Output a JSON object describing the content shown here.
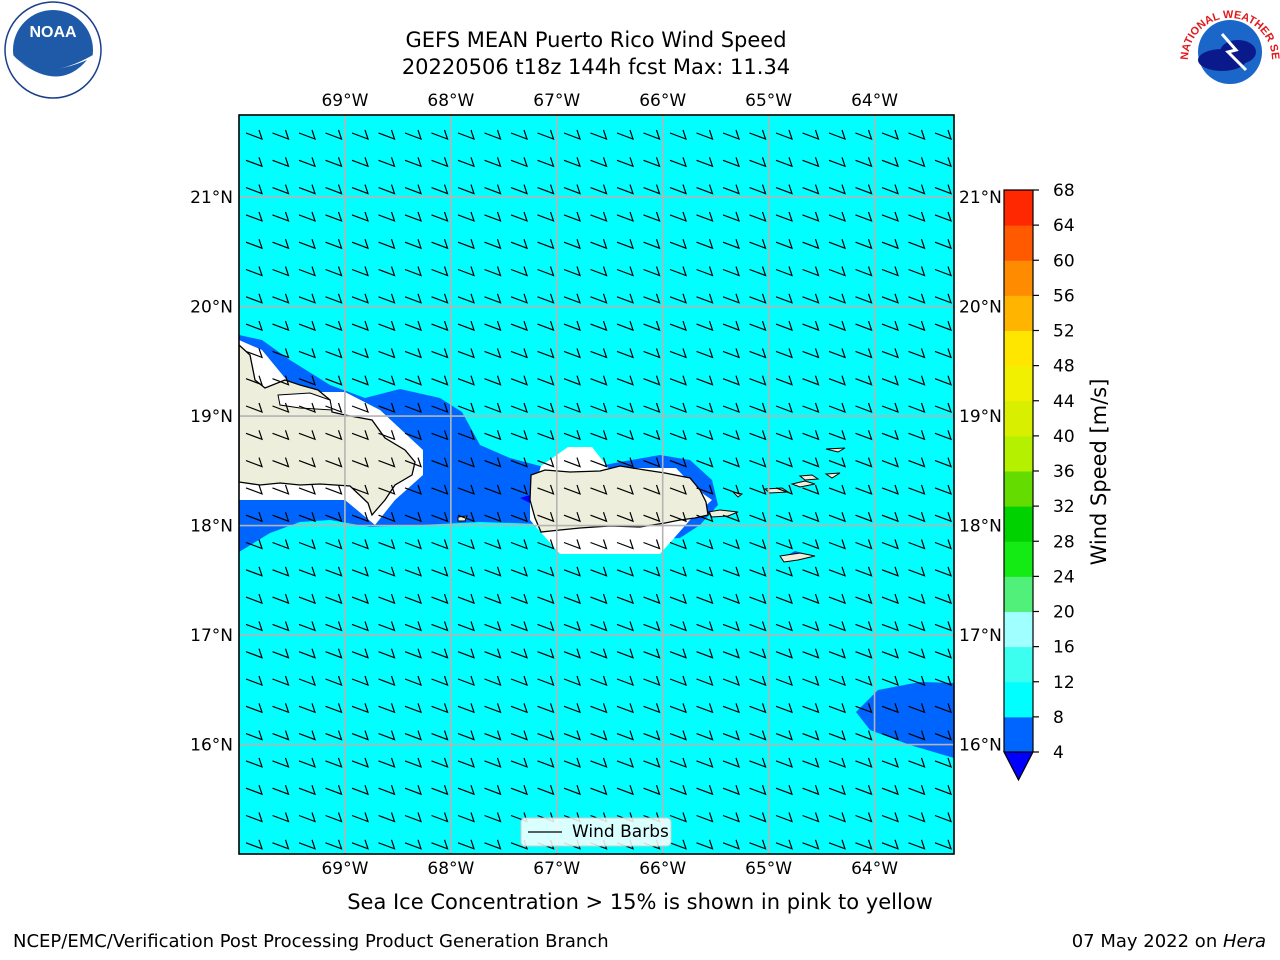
{
  "title": {
    "line1": "GEFS MEAN Puerto Rico Wind Speed",
    "line2": "20220506 t18z 144h fcst   Max: 11.34"
  },
  "map": {
    "lon_range": [
      -70.0,
      -63.25
    ],
    "lat_range": [
      15.0,
      21.75
    ],
    "lon_ticks": [
      {
        "value": -69,
        "label": "69°W"
      },
      {
        "value": -68,
        "label": "68°W"
      },
      {
        "value": -67,
        "label": "67°W"
      },
      {
        "value": -66,
        "label": "66°W"
      },
      {
        "value": -65,
        "label": "65°W"
      },
      {
        "value": -64,
        "label": "64°W"
      }
    ],
    "lat_ticks": [
      {
        "value": 21,
        "label": "21°N"
      },
      {
        "value": 20,
        "label": "20°N"
      },
      {
        "value": 19,
        "label": "19°N"
      },
      {
        "value": 18,
        "label": "18°N"
      },
      {
        "value": 17,
        "label": "17°N"
      },
      {
        "value": 16,
        "label": "16°N"
      }
    ],
    "grid": true,
    "background_fill_color": "#00ffff",
    "land_color": "#eeeedd",
    "legend_label": "Wind Barbs",
    "legend_position": "bottom-center"
  },
  "colorbar": {
    "label": "Wind Speed [m/s]",
    "levels": [
      4,
      8,
      12,
      16,
      20,
      24,
      28,
      32,
      36,
      40,
      44,
      48,
      52,
      56,
      60,
      64,
      68
    ],
    "colors": [
      "#0064ff",
      "#00ffff",
      "#3cfff0",
      "#a0ffff",
      "#50f07a",
      "#14eb14",
      "#00d200",
      "#64dc00",
      "#b4f000",
      "#d8f000",
      "#f0f000",
      "#ffe600",
      "#ffb400",
      "#ff8c00",
      "#ff5a00",
      "#ff2800"
    ],
    "under_color": "#0000ff"
  },
  "note": "Sea Ice Concentration > 15% is shown in pink to yellow",
  "footer": {
    "left": "NCEP/EMC/Verification Post Processing Product Generation Branch",
    "date": "07 May 2022 on ",
    "machine": "Hera"
  },
  "logos": {
    "noaa": "NOAA",
    "nws_text": "NATIONAL WEATHER SERVICE"
  }
}
